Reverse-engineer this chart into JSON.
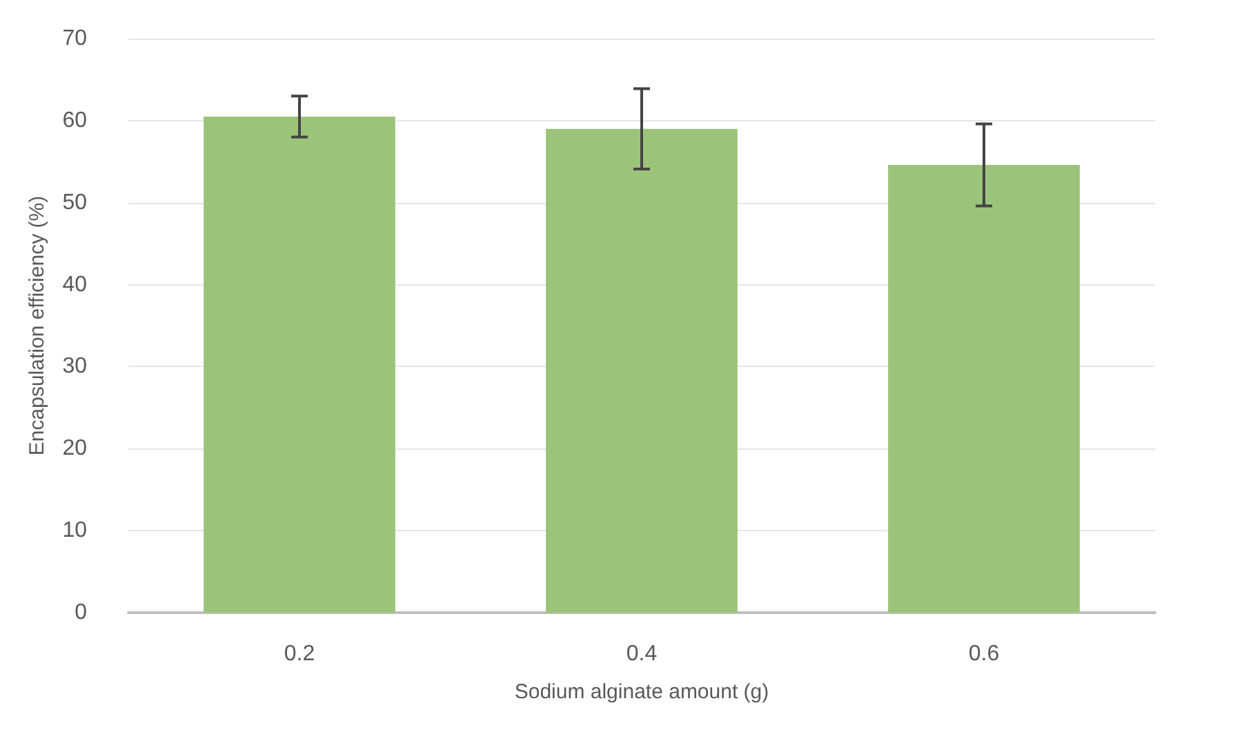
{
  "chart_data": {
    "type": "bar",
    "xlabel": "Sodium alginate amount (g)",
    "ylabel": "Encapsulation efficiency (%)",
    "categories": [
      "0.2",
      "0.4",
      "0.6"
    ],
    "values": [
      60.5,
      59,
      54.6
    ],
    "errors": [
      2.5,
      4.9,
      5
    ],
    "color": "#9bc47a",
    "ylim": [
      0,
      70
    ],
    "yticks": [
      0,
      10,
      20,
      30,
      40,
      50,
      60,
      70
    ],
    "grid": "y"
  }
}
